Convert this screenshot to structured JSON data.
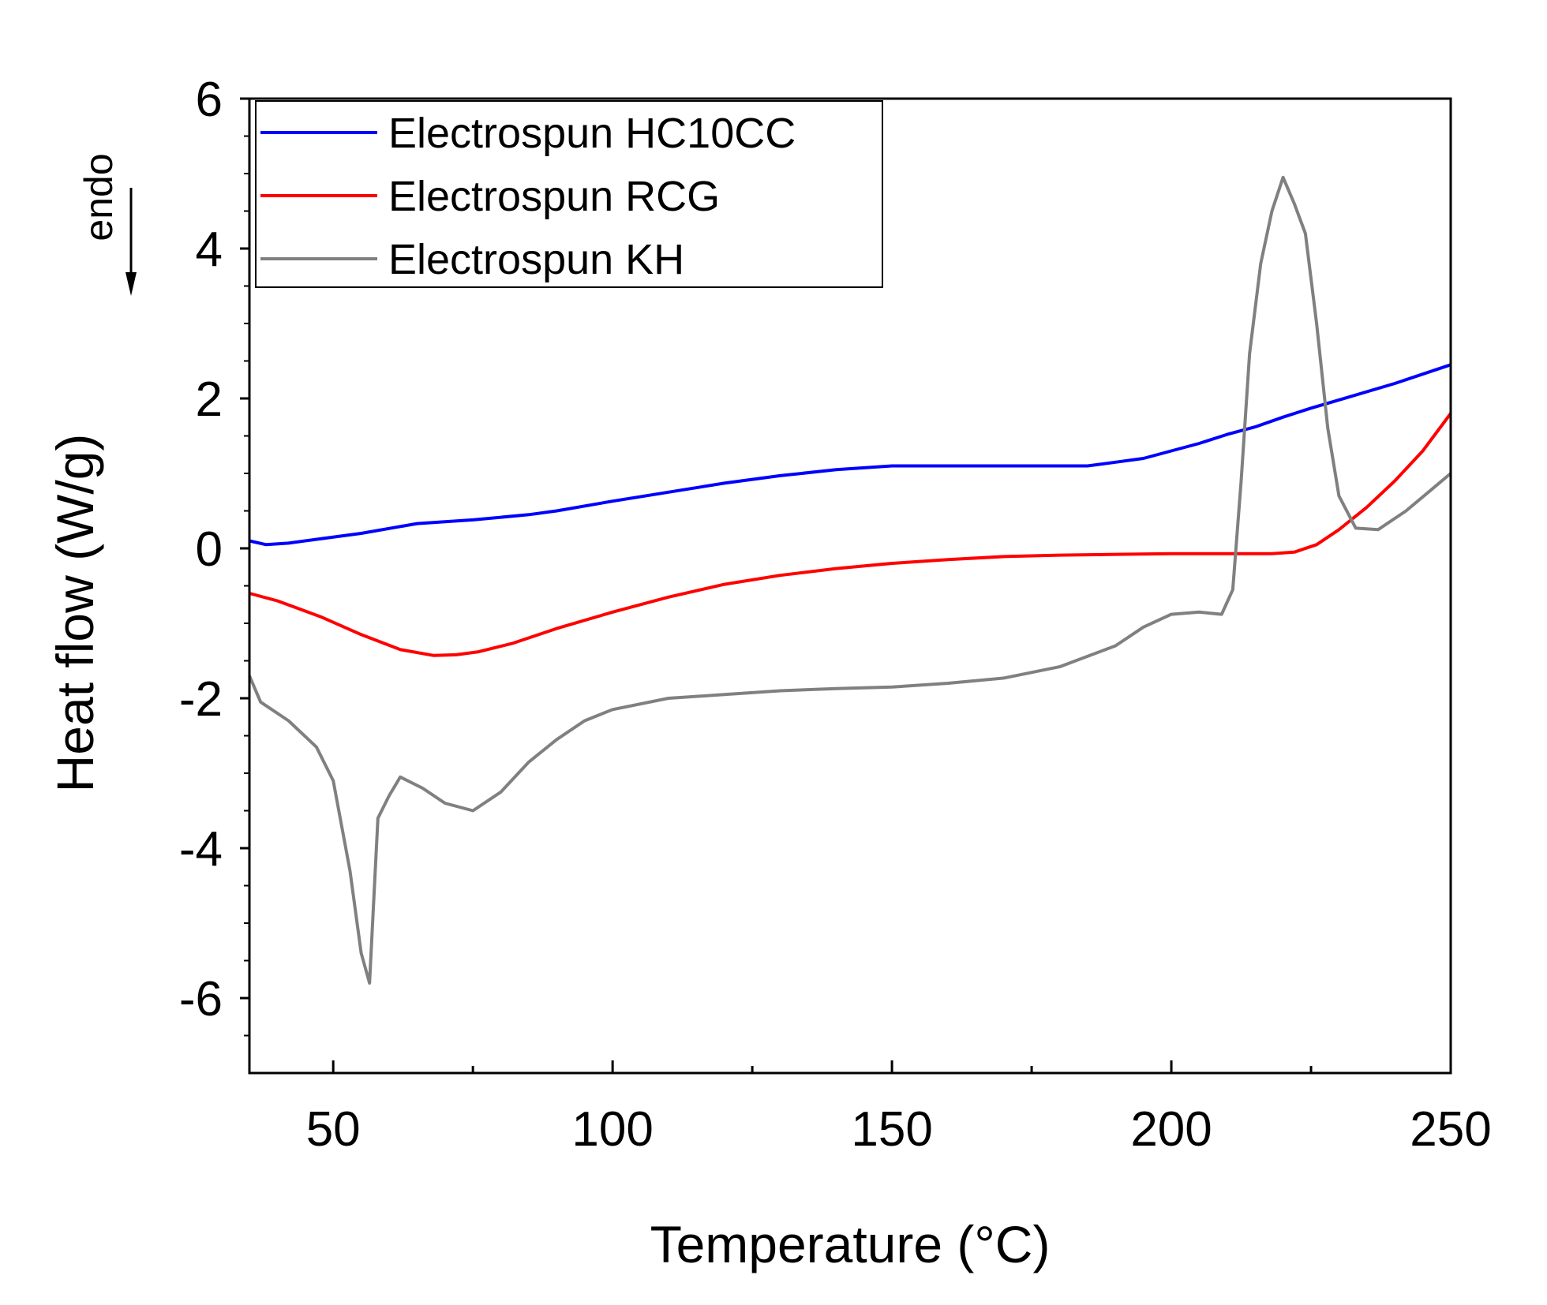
{
  "chart_data": {
    "type": "line",
    "title": "",
    "xlabel": "Temperature (°C)",
    "ylabel": "Heat flow (W/g)",
    "annotation": "endo",
    "annotation_arrow": "down",
    "xlim": [
      35,
      250
    ],
    "ylim": [
      -7,
      6
    ],
    "xticks": [
      50,
      100,
      150,
      200,
      250
    ],
    "yticks": [
      -6,
      -4,
      -2,
      0,
      2,
      4,
      6
    ],
    "grid": false,
    "legend_position": "top-left",
    "series": [
      {
        "name": "Electrospun HC10CC",
        "color": "#0000ff",
        "x": [
          35,
          38,
          42,
          48,
          55,
          65,
          75,
          85,
          90,
          100,
          110,
          120,
          130,
          140,
          150,
          160,
          170,
          180,
          185,
          190,
          195,
          200,
          205,
          210,
          215,
          220,
          225,
          230,
          240,
          250
        ],
        "y": [
          0.1,
          0.05,
          0.07,
          0.13,
          0.2,
          0.33,
          0.38,
          0.45,
          0.5,
          0.63,
          0.75,
          0.87,
          0.97,
          1.05,
          1.1,
          1.1,
          1.1,
          1.1,
          1.1,
          1.15,
          1.2,
          1.3,
          1.4,
          1.52,
          1.62,
          1.75,
          1.87,
          1.98,
          2.2,
          2.45
        ]
      },
      {
        "name": "Electrospun RCG",
        "color": "#ff0000",
        "x": [
          35,
          40,
          48,
          55,
          62,
          68,
          72,
          76,
          82,
          90,
          100,
          110,
          120,
          130,
          140,
          150,
          160,
          170,
          180,
          190,
          200,
          210,
          218,
          222,
          226,
          230,
          235,
          240,
          245,
          250
        ],
        "y": [
          -0.6,
          -0.7,
          -0.92,
          -1.15,
          -1.35,
          -1.43,
          -1.42,
          -1.38,
          -1.27,
          -1.07,
          -0.85,
          -0.65,
          -0.48,
          -0.36,
          -0.27,
          -0.2,
          -0.15,
          -0.11,
          -0.09,
          -0.08,
          -0.07,
          -0.07,
          -0.07,
          -0.05,
          0.05,
          0.25,
          0.55,
          0.9,
          1.3,
          1.8
        ]
      },
      {
        "name": "Electrospun KH",
        "color": "#808080",
        "x": [
          35,
          37,
          42,
          47,
          50,
          53,
          55,
          56.5,
          58,
          60,
          62,
          66,
          70,
          75,
          80,
          85,
          90,
          95,
          100,
          110,
          120,
          130,
          140,
          150,
          160,
          170,
          180,
          190,
          195,
          200,
          205,
          209,
          211,
          212.5,
          214,
          216,
          218,
          220,
          222,
          224,
          226,
          228,
          230,
          233,
          237,
          242,
          246,
          250
        ],
        "y": [
          -1.7,
          -2.05,
          -2.3,
          -2.65,
          -3.1,
          -4.3,
          -5.4,
          -5.8,
          -3.6,
          -3.3,
          -3.05,
          -3.2,
          -3.4,
          -3.5,
          -3.25,
          -2.85,
          -2.55,
          -2.3,
          -2.15,
          -2.0,
          -1.95,
          -1.9,
          -1.87,
          -1.85,
          -1.8,
          -1.73,
          -1.58,
          -1.3,
          -1.05,
          -0.88,
          -0.85,
          -0.88,
          -0.55,
          0.9,
          2.6,
          3.8,
          4.5,
          4.95,
          4.6,
          4.2,
          3.0,
          1.6,
          0.7,
          0.27,
          0.25,
          0.5,
          0.75,
          1.0
        ]
      }
    ]
  }
}
